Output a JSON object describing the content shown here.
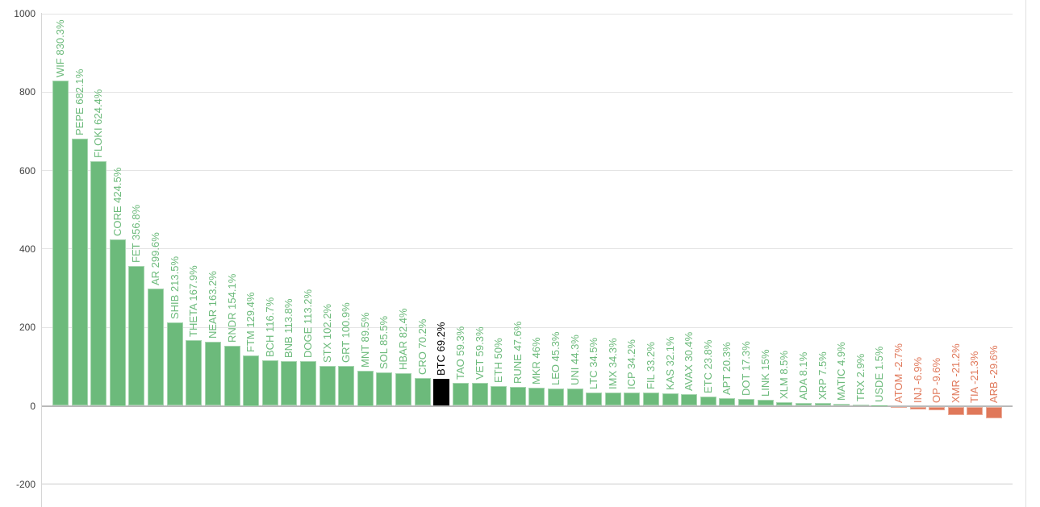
{
  "chart_data": {
    "type": "bar",
    "title": "",
    "xlabel": "",
    "ylabel": "",
    "ylim": [
      -200,
      1000
    ],
    "y_ticks": [
      1000,
      800,
      600,
      400,
      200,
      0,
      -200
    ],
    "y_tick_labels": [
      "1000",
      "800",
      "600",
      "400",
      "200",
      "0",
      "-200"
    ],
    "grid": "horizontal",
    "legend": "none",
    "series": [
      {
        "name": "crypto-performance-percent",
        "points": [
          {
            "symbol": "WIF",
            "value": 830.3,
            "label": "WIF 830.3%",
            "role": "positive"
          },
          {
            "symbol": "PEPE",
            "value": 682.1,
            "label": "PEPE 682.1%",
            "role": "positive"
          },
          {
            "symbol": "FLOKI",
            "value": 624.4,
            "label": "FLOKI 624.4%",
            "role": "positive"
          },
          {
            "symbol": "CORE",
            "value": 424.5,
            "label": "CORE 424.5%",
            "role": "positive"
          },
          {
            "symbol": "FET",
            "value": 356.8,
            "label": "FET 356.8%",
            "role": "positive"
          },
          {
            "symbol": "AR",
            "value": 299.6,
            "label": "AR 299.6%",
            "role": "positive"
          },
          {
            "symbol": "SHIB",
            "value": 213.5,
            "label": "SHIB 213.5%",
            "role": "positive"
          },
          {
            "symbol": "THETA",
            "value": 167.9,
            "label": "THETA 167.9%",
            "role": "positive"
          },
          {
            "symbol": "NEAR",
            "value": 163.2,
            "label": "NEAR 163.2%",
            "role": "positive"
          },
          {
            "symbol": "RNDR",
            "value": 154.1,
            "label": "RNDR 154.1%",
            "role": "positive"
          },
          {
            "symbol": "FTM",
            "value": 129.4,
            "label": "FTM 129.4%",
            "role": "positive"
          },
          {
            "symbol": "BCH",
            "value": 116.7,
            "label": "BCH 116.7%",
            "role": "positive"
          },
          {
            "symbol": "BNB",
            "value": 113.8,
            "label": "BNB 113.8%",
            "role": "positive"
          },
          {
            "symbol": "DOGE",
            "value": 113.2,
            "label": "DOGE 113.2%",
            "role": "positive"
          },
          {
            "symbol": "STX",
            "value": 102.2,
            "label": "STX 102.2%",
            "role": "positive"
          },
          {
            "symbol": "GRT",
            "value": 100.9,
            "label": "GRT 100.9%",
            "role": "positive"
          },
          {
            "symbol": "MNT",
            "value": 89.5,
            "label": "MNT 89.5%",
            "role": "positive"
          },
          {
            "symbol": "SOL",
            "value": 85.5,
            "label": "SOL 85.5%",
            "role": "positive"
          },
          {
            "symbol": "HBAR",
            "value": 82.4,
            "label": "HBAR 82.4%",
            "role": "positive"
          },
          {
            "symbol": "CRO",
            "value": 70.2,
            "label": "CRO 70.2%",
            "role": "positive"
          },
          {
            "symbol": "BTC",
            "value": 69.2,
            "label": "BTC 69.2%",
            "role": "highlight"
          },
          {
            "symbol": "TAO",
            "value": 59.3,
            "label": "TAO 59.3%",
            "role": "positive"
          },
          {
            "symbol": "VET",
            "value": 59.3,
            "label": "VET 59.3%",
            "role": "positive"
          },
          {
            "symbol": "ETH",
            "value": 50,
            "label": "ETH 50%",
            "role": "positive"
          },
          {
            "symbol": "RUNE",
            "value": 47.6,
            "label": "RUNE 47.6%",
            "role": "positive"
          },
          {
            "symbol": "MKR",
            "value": 46,
            "label": "MKR 46%",
            "role": "positive"
          },
          {
            "symbol": "LEO",
            "value": 45.3,
            "label": "LEO 45.3%",
            "role": "positive"
          },
          {
            "symbol": "UNI",
            "value": 44.3,
            "label": "UNI 44.3%",
            "role": "positive"
          },
          {
            "symbol": "LTC",
            "value": 34.5,
            "label": "LTC 34.5%",
            "role": "positive"
          },
          {
            "symbol": "IMX",
            "value": 34.3,
            "label": "IMX 34.3%",
            "role": "positive"
          },
          {
            "symbol": "ICP",
            "value": 34.2,
            "label": "ICP 34.2%",
            "role": "positive"
          },
          {
            "symbol": "FIL",
            "value": 33.2,
            "label": "FIL 33.2%",
            "role": "positive"
          },
          {
            "symbol": "KAS",
            "value": 32.1,
            "label": "KAS 32.1%",
            "role": "positive"
          },
          {
            "symbol": "AVAX",
            "value": 30.4,
            "label": "AVAX 30.4%",
            "role": "positive"
          },
          {
            "symbol": "ETC",
            "value": 23.8,
            "label": "ETC 23.8%",
            "role": "positive"
          },
          {
            "symbol": "APT",
            "value": 20.3,
            "label": "APT 20.3%",
            "role": "positive"
          },
          {
            "symbol": "DOT",
            "value": 17.3,
            "label": "DOT 17.3%",
            "role": "positive"
          },
          {
            "symbol": "LINK",
            "value": 15,
            "label": "LINK 15%",
            "role": "positive"
          },
          {
            "symbol": "XLM",
            "value": 8.5,
            "label": "XLM 8.5%",
            "role": "positive"
          },
          {
            "symbol": "ADA",
            "value": 8.1,
            "label": "ADA 8.1%",
            "role": "positive"
          },
          {
            "symbol": "XRP",
            "value": 7.5,
            "label": "XRP 7.5%",
            "role": "positive"
          },
          {
            "symbol": "MATIC",
            "value": 4.9,
            "label": "MATIC 4.9%",
            "role": "positive"
          },
          {
            "symbol": "TRX",
            "value": 2.9,
            "label": "TRX 2.9%",
            "role": "positive"
          },
          {
            "symbol": "USDE",
            "value": 1.5,
            "label": "USDE 1.5%",
            "role": "positive"
          },
          {
            "symbol": "ATOM",
            "value": -2.7,
            "label": "ATOM -2.7%",
            "role": "negative"
          },
          {
            "symbol": "INJ",
            "value": -6.9,
            "label": "INJ -6.9%",
            "role": "negative"
          },
          {
            "symbol": "OP",
            "value": -9.6,
            "label": "OP -9.6%",
            "role": "negative"
          },
          {
            "symbol": "XMR",
            "value": -21.2,
            "label": "XMR -21.2%",
            "role": "negative"
          },
          {
            "symbol": "TIA",
            "value": -21.3,
            "label": "TIA -21.3%",
            "role": "negative"
          },
          {
            "symbol": "ARB",
            "value": -29.6,
            "label": "ARB -29.6%",
            "role": "negative"
          }
        ]
      }
    ]
  },
  "colors": {
    "positive": "#6cba7b",
    "negative": "#e0785a",
    "highlight": "#000000",
    "axis_text": "#404040",
    "grid_light": "#e4e4e4",
    "grid_zero": "#b9b9b9",
    "grid_bottom": "#cccccc",
    "axis_line": "#d6d6d6",
    "right_border": "#e0e0e0",
    "background": "#ffffff"
  }
}
